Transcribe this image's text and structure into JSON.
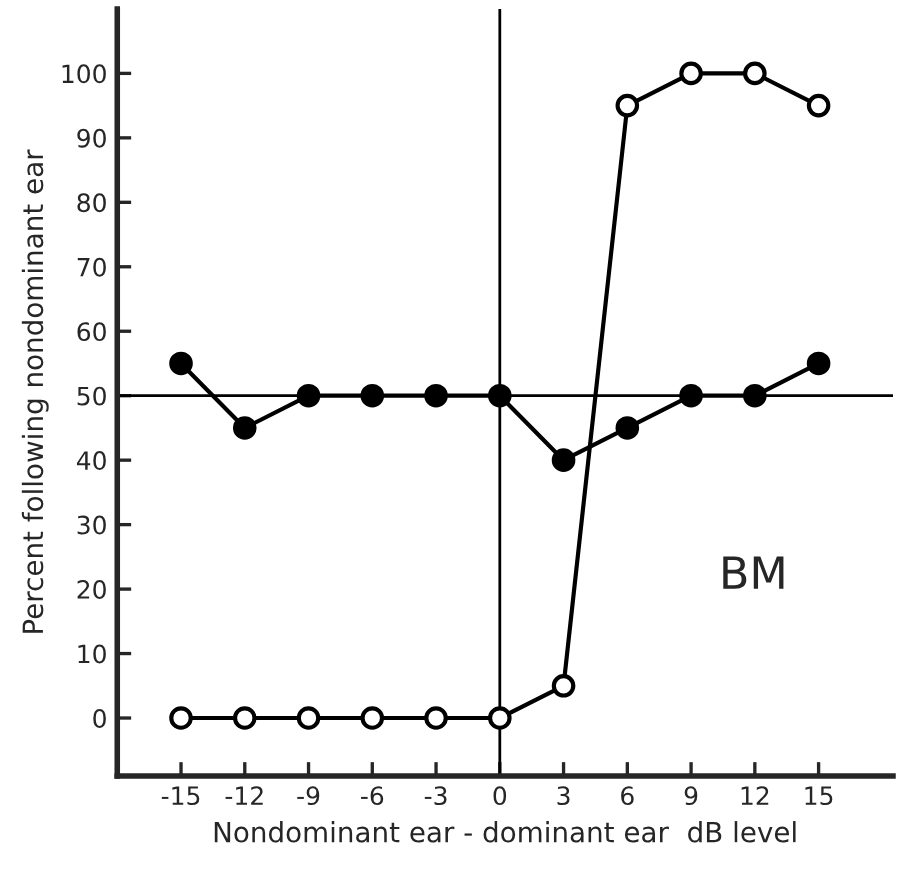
{
  "chart_data": {
    "type": "line",
    "xlabel": "Nondominant ear - dominant ear  dB level",
    "ylabel": "Percent following nondominant ear",
    "x": [
      -15,
      -12,
      -9,
      -6,
      -3,
      0,
      3,
      6,
      9,
      12,
      15
    ],
    "series": [
      {
        "color": "#000000",
        "marker": "circle",
        "values": [
          55,
          45,
          50,
          50,
          50,
          50,
          40,
          45,
          50,
          50,
          55
        ]
      },
      {
        "color": "#000000",
        "marker": "circle",
        "values": [
          0,
          0,
          0,
          0,
          0,
          0,
          5,
          95,
          100,
          100,
          95
        ]
      }
    ],
    "xlim": [
      -18,
      18.5
    ],
    "ylim": [
      -9,
      110
    ],
    "xticks": [
      -15,
      -12,
      -9,
      -6,
      -3,
      0,
      3,
      6,
      9,
      12,
      15
    ],
    "yticks": [
      0,
      10,
      20,
      30,
      40,
      50,
      60,
      70,
      80,
      90,
      100
    ],
    "ref_lines": [
      {
        "axis": "x",
        "value": 0
      },
      {
        "axis": "y",
        "value": 50
      }
    ],
    "annotations": [
      "BM"
    ],
    "grid": false,
    "legend": false,
    "line_style": "solid"
  }
}
